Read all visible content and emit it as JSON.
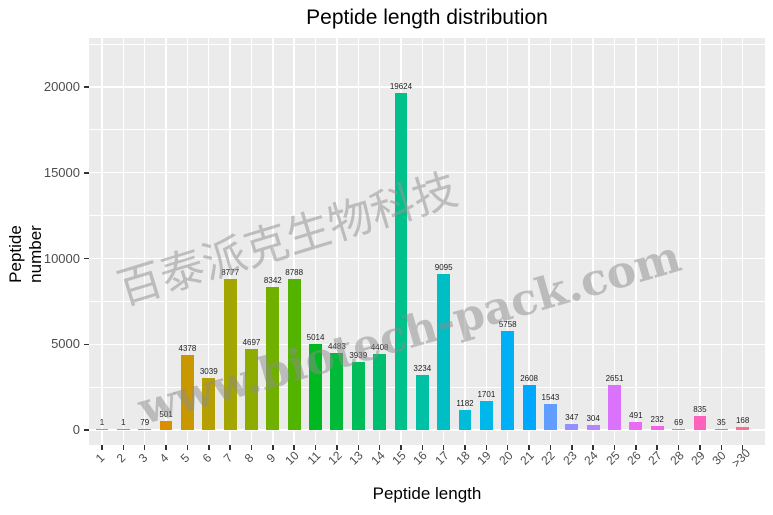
{
  "chart_data": {
    "type": "bar",
    "title": "Peptide length distribution",
    "xlabel": "Peptide length",
    "ylabel": "Peptide number",
    "ylim": [
      0,
      22500
    ],
    "yticks": [
      0,
      5000,
      10000,
      15000,
      20000
    ],
    "grid": true,
    "legend": "none",
    "categories": [
      "1",
      "2",
      "3",
      "4",
      "5",
      "6",
      "7",
      "8",
      "9",
      "10",
      "11",
      "12",
      "13",
      "14",
      "15",
      "16",
      "17",
      "18",
      "19",
      "20",
      "21",
      "22",
      "23",
      "24",
      "25",
      "26",
      "27",
      "28",
      "29",
      "30",
      ">30"
    ],
    "values": [
      1,
      1,
      79,
      501,
      4378,
      3039,
      8777,
      4697,
      8342,
      8788,
      5014,
      4483,
      3939,
      4408,
      19624,
      3234,
      9095,
      1182,
      1701,
      5758,
      2608,
      1543,
      347,
      304,
      2651,
      491,
      232,
      69,
      835,
      35,
      168
    ],
    "colors": [
      "#F8766D",
      "#EE7F34",
      "#E58700",
      "#DA8F00",
      "#C99800",
      "#B69F00",
      "#A3A500",
      "#8EAB00",
      "#72B000",
      "#53B400",
      "#00B81F",
      "#00BA38",
      "#00BC59",
      "#00BE6F",
      "#00C08B",
      "#00C1A3",
      "#00BFC4",
      "#00BCD8",
      "#00B7E9",
      "#00B0F6",
      "#00A8FF",
      "#619CFF",
      "#9590FF",
      "#B983FF",
      "#DB72FB",
      "#E76BF3",
      "#F265E7",
      "#FD61D1",
      "#FF62BC",
      "#FF67A4",
      "#FF6C91"
    ]
  },
  "watermark": {
    "chinese": "百泰派克生物科技",
    "url": "www.biotech-pack.com"
  }
}
